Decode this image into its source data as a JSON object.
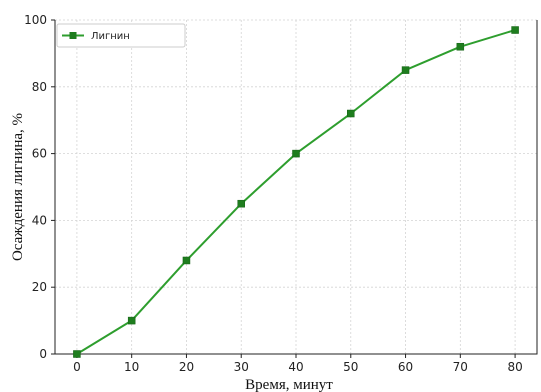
{
  "chart_data": {
    "type": "line",
    "title": "",
    "xlabel": "Время, минут",
    "ylabel": "Осаждения лигнина, %",
    "x": [
      0,
      10,
      20,
      30,
      40,
      50,
      60,
      70,
      80
    ],
    "xticks": [
      "0",
      "10",
      "20",
      "30",
      "40",
      "50",
      "60",
      "70",
      "80"
    ],
    "xlim": [
      -4,
      84
    ],
    "ylim": [
      0,
      100
    ],
    "yticks": [
      "0",
      "20",
      "40",
      "60",
      "80",
      "100"
    ],
    "grid": true,
    "legend_position": "top-left",
    "series": [
      {
        "name": "Лигнин",
        "color": "#2e9e2e",
        "marker": "square",
        "values": [
          0,
          10,
          28,
          45,
          60,
          72,
          85,
          92,
          97
        ]
      }
    ]
  }
}
